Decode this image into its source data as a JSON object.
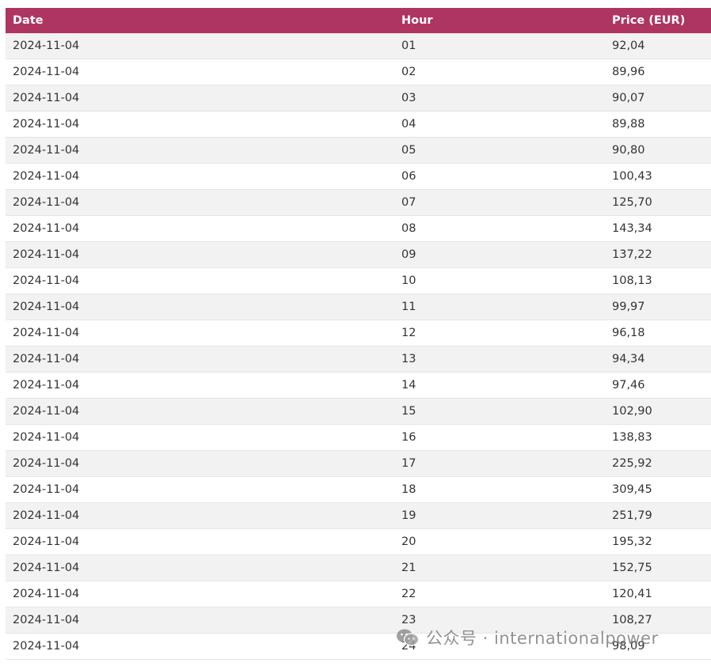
{
  "table": {
    "headers": {
      "date": "Date",
      "hour": "Hour",
      "price": "Price (EUR)"
    },
    "rows": [
      {
        "date": "2024-11-04",
        "hour": "01",
        "price": "92,04"
      },
      {
        "date": "2024-11-04",
        "hour": "02",
        "price": "89,96"
      },
      {
        "date": "2024-11-04",
        "hour": "03",
        "price": "90,07"
      },
      {
        "date": "2024-11-04",
        "hour": "04",
        "price": "89,88"
      },
      {
        "date": "2024-11-04",
        "hour": "05",
        "price": "90,80"
      },
      {
        "date": "2024-11-04",
        "hour": "06",
        "price": "100,43"
      },
      {
        "date": "2024-11-04",
        "hour": "07",
        "price": "125,70"
      },
      {
        "date": "2024-11-04",
        "hour": "08",
        "price": "143,34"
      },
      {
        "date": "2024-11-04",
        "hour": "09",
        "price": "137,22"
      },
      {
        "date": "2024-11-04",
        "hour": "10",
        "price": "108,13"
      },
      {
        "date": "2024-11-04",
        "hour": "11",
        "price": "99,97"
      },
      {
        "date": "2024-11-04",
        "hour": "12",
        "price": "96,18"
      },
      {
        "date": "2024-11-04",
        "hour": "13",
        "price": "94,34"
      },
      {
        "date": "2024-11-04",
        "hour": "14",
        "price": "97,46"
      },
      {
        "date": "2024-11-04",
        "hour": "15",
        "price": "102,90"
      },
      {
        "date": "2024-11-04",
        "hour": "16",
        "price": "138,83"
      },
      {
        "date": "2024-11-04",
        "hour": "17",
        "price": "225,92"
      },
      {
        "date": "2024-11-04",
        "hour": "18",
        "price": "309,45"
      },
      {
        "date": "2024-11-04",
        "hour": "19",
        "price": "251,79"
      },
      {
        "date": "2024-11-04",
        "hour": "20",
        "price": "195,32"
      },
      {
        "date": "2024-11-04",
        "hour": "21",
        "price": "152,75"
      },
      {
        "date": "2024-11-04",
        "hour": "22",
        "price": "120,41"
      },
      {
        "date": "2024-11-04",
        "hour": "23",
        "price": "108,27"
      },
      {
        "date": "2024-11-04",
        "hour": "24",
        "price": "98,09"
      }
    ]
  },
  "watermark": {
    "icon": "wechat-icon",
    "text": "公众号 · internationalpower"
  },
  "colors": {
    "header_bg": "#ae3562",
    "row_alt": "#f2f2f2"
  }
}
